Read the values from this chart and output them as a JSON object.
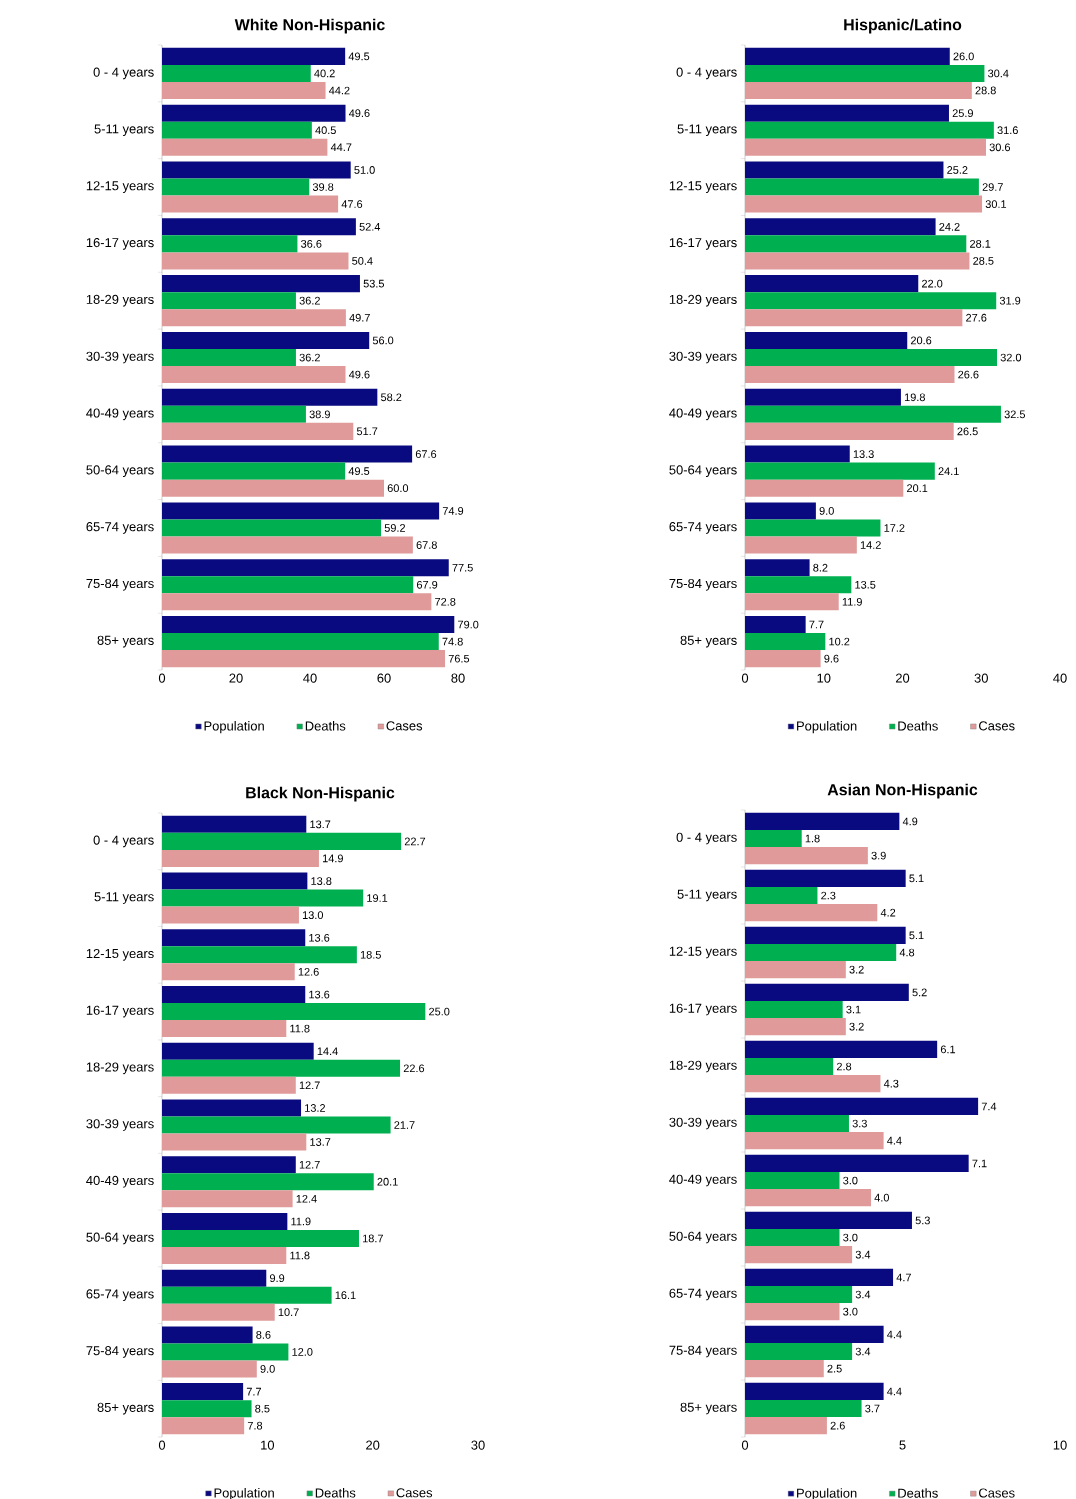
{
  "chart_data": [
    {
      "type": "bar",
      "orientation": "horizontal",
      "title": "White Non-Hispanic",
      "categories": [
        "0 - 4 years",
        "5-11 years",
        "12-15 years",
        "16-17 years",
        "18-29 years",
        "30-39 years",
        "40-49 years",
        "50-64 years",
        "65-74 years",
        "75-84 years",
        "85+ years"
      ],
      "xlim": [
        0,
        80
      ],
      "xticks": [
        0,
        20,
        40,
        60,
        80
      ],
      "legend": "bottom",
      "series": [
        {
          "name": "Population",
          "color": "#0a0a80",
          "values": [
            49.5,
            49.6,
            51.0,
            52.4,
            53.5,
            56.0,
            58.2,
            67.6,
            74.9,
            77.5,
            79.0
          ],
          "value_labels": [
            "49.5",
            "49.6",
            "51.0",
            "52.4",
            "53.5",
            "56.0",
            "58.2",
            "67.6",
            "74.9",
            "77.5",
            "79.0"
          ]
        },
        {
          "name": "Deaths",
          "color": "#00b050",
          "values": [
            40.2,
            40.5,
            39.8,
            36.6,
            36.2,
            36.2,
            38.9,
            49.5,
            59.2,
            67.9,
            74.8
          ],
          "value_labels": [
            "40.2",
            "40.5",
            "39.8",
            "36.6",
            "36.2",
            "36.2",
            "38.9",
            "49.5",
            "59.2",
            "67.9",
            "74.8"
          ]
        },
        {
          "name": "Cases",
          "color": "#e09a9a",
          "values": [
            44.2,
            44.7,
            47.6,
            50.4,
            49.7,
            49.6,
            51.7,
            60.0,
            67.8,
            72.8,
            76.5
          ],
          "value_labels": [
            "44.2",
            "44.7",
            "47.6",
            "50.4",
            "49.7",
            "49.6",
            "51.7",
            "60.0",
            "67.8",
            "72.8",
            "76.5"
          ]
        }
      ]
    },
    {
      "type": "bar",
      "orientation": "horizontal",
      "title": "Hispanic/Latino",
      "categories": [
        "0 - 4 years",
        "5-11 years",
        "12-15 years",
        "16-17 years",
        "18-29 years",
        "30-39 years",
        "40-49 years",
        "50-64 years",
        "65-74 years",
        "75-84 years",
        "85+ years"
      ],
      "xlim": [
        0,
        40
      ],
      "xticks": [
        0,
        10,
        20,
        30,
        40
      ],
      "legend": "bottom",
      "series": [
        {
          "name": "Population",
          "color": "#0a0a80",
          "values": [
            26.0,
            25.9,
            25.2,
            24.2,
            22.0,
            20.6,
            19.8,
            13.3,
            9.0,
            8.2,
            7.7
          ],
          "value_labels": [
            "26.0",
            "25.9",
            "25.2",
            "24.2",
            "22.0",
            "20.6",
            "19.8",
            "13.3",
            "9.0",
            "8.2",
            "7.7"
          ]
        },
        {
          "name": "Deaths",
          "color": "#00b050",
          "values": [
            30.4,
            31.6,
            29.7,
            28.1,
            31.9,
            32.0,
            32.5,
            24.1,
            17.2,
            13.5,
            10.2
          ],
          "value_labels": [
            "30.4",
            "31.6",
            "29.7",
            "28.1",
            "31.9",
            "32.0",
            "32.5",
            "24.1",
            "17.2",
            "13.5",
            "10.2"
          ]
        },
        {
          "name": "Cases",
          "color": "#e09a9a",
          "values": [
            28.8,
            30.6,
            30.1,
            28.5,
            27.6,
            26.6,
            26.5,
            20.1,
            14.2,
            11.9,
            9.6
          ],
          "value_labels": [
            "28.8",
            "30.6",
            "30.1",
            "28.5",
            "27.6",
            "26.6",
            "26.5",
            "20.1",
            "14.2",
            "11.9",
            "9.6"
          ]
        }
      ]
    },
    {
      "type": "bar",
      "orientation": "horizontal",
      "title": "Black Non-Hispanic",
      "categories": [
        "0 - 4 years",
        "5-11 years",
        "12-15 years",
        "16-17 years",
        "18-29 years",
        "30-39 years",
        "40-49 years",
        "50-64 years",
        "65-74 years",
        "75-84 years",
        "85+ years"
      ],
      "xlim": [
        0,
        30
      ],
      "xticks": [
        0,
        10,
        20,
        30
      ],
      "legend": "bottom",
      "series": [
        {
          "name": "Population",
          "color": "#0a0a80",
          "values": [
            13.7,
            13.8,
            13.6,
            13.6,
            14.4,
            13.2,
            12.7,
            11.9,
            9.9,
            8.6,
            7.7
          ],
          "value_labels": [
            "13.7",
            "13.8",
            "13.6",
            "13.6",
            "14.4",
            "13.2",
            "12.7",
            "11.9",
            "9.9",
            "8.6",
            "7.7"
          ]
        },
        {
          "name": "Deaths",
          "color": "#00b050",
          "values": [
            22.7,
            19.1,
            18.5,
            25.0,
            22.6,
            21.7,
            20.1,
            18.7,
            16.1,
            12.0,
            8.5
          ],
          "value_labels": [
            "22.7",
            "19.1",
            "18.5",
            "25.0",
            "22.6",
            "21.7",
            "20.1",
            "18.7",
            "16.1",
            "12.0",
            "8.5"
          ]
        },
        {
          "name": "Cases",
          "color": "#e09a9a",
          "values": [
            14.9,
            13.0,
            12.6,
            11.8,
            12.7,
            13.7,
            12.4,
            11.8,
            10.7,
            9.0,
            7.8
          ],
          "value_labels": [
            "14.9",
            "13.0",
            "12.6",
            "11.8",
            "12.7",
            "13.7",
            "12.4",
            "11.8",
            "10.7",
            "9.0",
            "7.8"
          ]
        }
      ]
    },
    {
      "type": "bar",
      "orientation": "horizontal",
      "title": "Asian Non-Hispanic",
      "categories": [
        "0 - 4 years",
        "5-11 years",
        "12-15 years",
        "16-17 years",
        "18-29 years",
        "30-39 years",
        "40-49 years",
        "50-64 years",
        "65-74 years",
        "75-84 years",
        "85+ years"
      ],
      "xlim": [
        0,
        10
      ],
      "xticks": [
        0,
        5,
        10
      ],
      "legend": "bottom",
      "series": [
        {
          "name": "Population",
          "color": "#0a0a80",
          "values": [
            4.9,
            5.1,
            5.1,
            5.2,
            6.1,
            7.4,
            7.1,
            5.3,
            4.7,
            4.4,
            4.4
          ],
          "value_labels": [
            "4.9",
            "5.1",
            "5.1",
            "5.2",
            "6.1",
            "7.4",
            "7.1",
            "5.3",
            "4.7",
            "4.4",
            "4.4"
          ]
        },
        {
          "name": "Deaths",
          "color": "#00b050",
          "values": [
            1.8,
            2.3,
            4.8,
            3.1,
            2.8,
            3.3,
            3.0,
            3.0,
            3.4,
            3.4,
            3.7
          ],
          "value_labels": [
            "1.8",
            "2.3",
            "4.8",
            "3.1",
            "2.8",
            "3.3",
            "3.0",
            "3.0",
            "3.4",
            "3.4",
            "3.7"
          ]
        },
        {
          "name": "Cases",
          "color": "#e09a9a",
          "values": [
            3.9,
            4.2,
            3.2,
            3.2,
            4.3,
            4.4,
            4.0,
            3.4,
            3.0,
            2.5,
            2.6
          ],
          "value_labels": [
            "3.9",
            "4.2",
            "3.2",
            "3.2",
            "4.3",
            "4.4",
            "4.0",
            "3.4",
            "3.0",
            "2.5",
            "2.6"
          ]
        }
      ]
    }
  ]
}
